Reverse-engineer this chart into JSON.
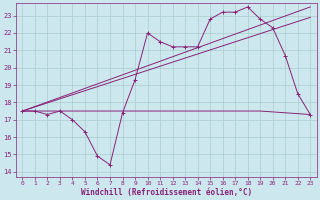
{
  "xlabel": "Windchill (Refroidissement éolien,°C)",
  "bg_color": "#cce8ee",
  "grid_color": "#aacccc",
  "line_color": "#882277",
  "xlim": [
    -0.5,
    23.5
  ],
  "ylim": [
    13.7,
    23.7
  ],
  "yticks": [
    14,
    15,
    16,
    17,
    18,
    19,
    20,
    21,
    22,
    23
  ],
  "xticks": [
    0,
    1,
    2,
    3,
    4,
    5,
    6,
    7,
    8,
    9,
    10,
    11,
    12,
    13,
    14,
    15,
    16,
    17,
    18,
    19,
    20,
    21,
    22,
    23
  ],
  "series1_x": [
    0,
    1,
    2,
    3,
    4,
    5,
    6,
    7,
    8,
    9,
    10,
    11,
    12,
    13,
    14,
    15,
    16,
    17,
    18,
    19,
    20,
    21,
    22,
    23
  ],
  "series1_y": [
    17.5,
    17.5,
    17.3,
    17.5,
    17.0,
    16.3,
    14.9,
    14.4,
    17.4,
    19.3,
    22.0,
    21.5,
    21.2,
    21.2,
    21.2,
    22.8,
    23.2,
    23.2,
    23.5,
    22.8,
    22.3,
    20.7,
    18.5,
    17.3
  ],
  "series2_x": [
    0,
    8,
    19,
    23
  ],
  "series2_y": [
    17.5,
    17.5,
    17.5,
    17.3
  ],
  "series3_x": [
    0,
    23
  ],
  "series3_y": [
    17.5,
    22.9
  ],
  "series4_x": [
    0,
    23
  ],
  "series4_y": [
    17.5,
    23.5
  ]
}
